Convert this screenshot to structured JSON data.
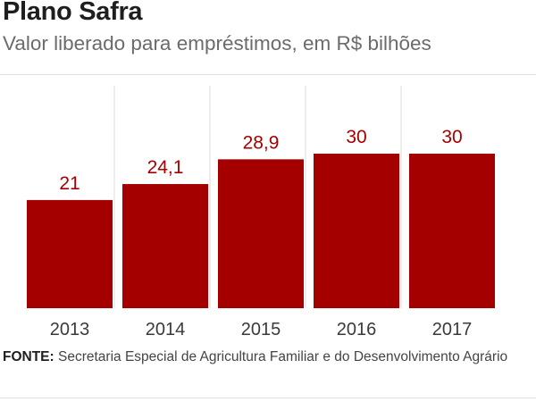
{
  "header": {
    "title": "Plano Safra",
    "subtitle": "Valor liberado para empréstimos, em R$ bilhões"
  },
  "source": {
    "label": "FONTE:",
    "text": "Secretaria Especial de Agricultura Familiar e do Desenvolvimento Agrário"
  },
  "colors": {
    "bar": "#a50000",
    "value_label": "#a50000",
    "tick_label": "#3a3a3a",
    "gridline": "#dedede"
  },
  "chart_data": {
    "type": "bar",
    "title": "Plano Safra",
    "subtitle": "Valor liberado para empréstimos, em R$ bilhões",
    "xlabel": "",
    "ylabel": "",
    "categories": [
      "2013",
      "2014",
      "2015",
      "2016",
      "2017"
    ],
    "values": [
      21,
      24.1,
      28.9,
      30,
      30
    ],
    "value_labels": [
      "21",
      "24,1",
      "28,9",
      "30",
      "30"
    ],
    "ylim": [
      0,
      30
    ],
    "grid": true,
    "legend": "none"
  }
}
